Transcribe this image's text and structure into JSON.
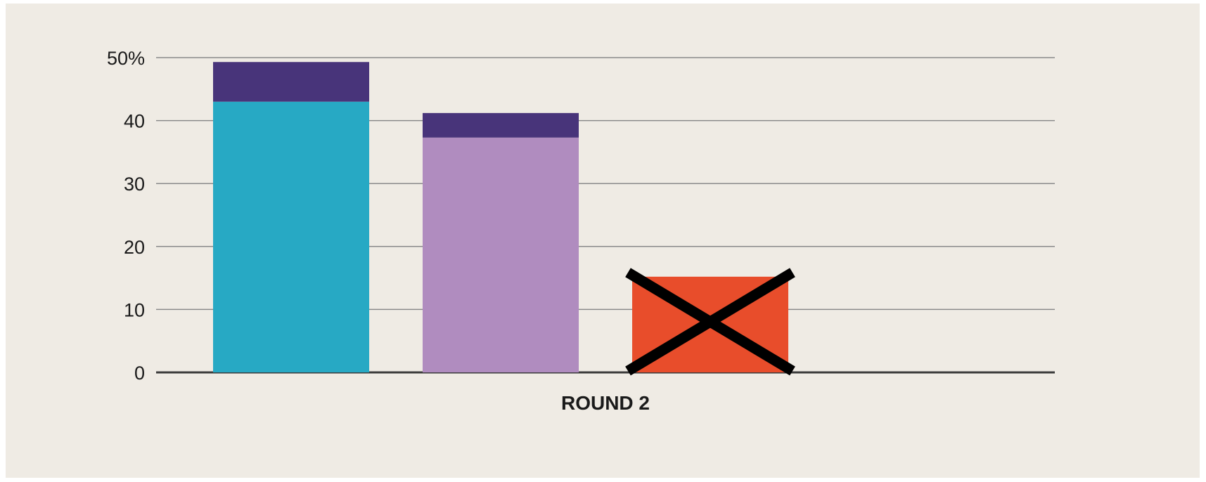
{
  "chart_data": {
    "type": "bar",
    "stacked": true,
    "categories": [
      "",
      "",
      ""
    ],
    "series": [
      {
        "values": [
          43,
          37.3,
          15.2
        ],
        "colors": [
          "#27a9c4",
          "#b08cbf",
          "#e84d2b"
        ]
      },
      {
        "values": [
          6.3,
          3.9,
          0
        ],
        "color": "#48347a"
      }
    ],
    "eliminated_index": 2,
    "x_caption": "ROUND 2",
    "y_ticks": [
      {
        "value": 0,
        "label": "0"
      },
      {
        "value": 10,
        "label": "10"
      },
      {
        "value": 20,
        "label": "20"
      },
      {
        "value": 30,
        "label": "30"
      },
      {
        "value": 40,
        "label": "40"
      },
      {
        "value": 50,
        "label": "50%"
      }
    ],
    "ylim": [
      0,
      50
    ],
    "grid": true,
    "background": "#efebe4",
    "gridline_color": "#8a8a8a",
    "baseline_color": "#3a3a3a",
    "cross_color": "#000000"
  }
}
